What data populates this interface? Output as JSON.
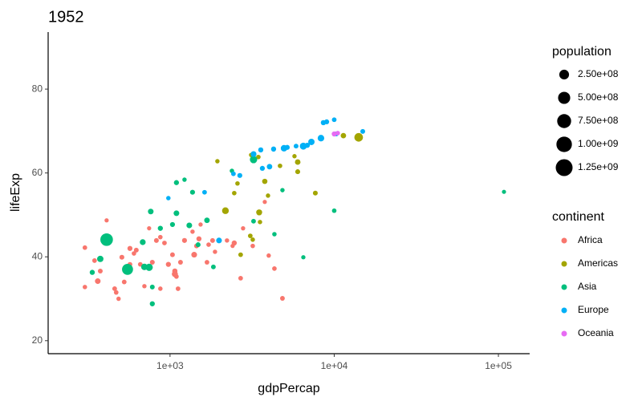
{
  "chart_data": {
    "type": "scatter",
    "title": "1952",
    "x_label": "gdpPercap",
    "y_label": "lifeExp",
    "xscale": "log",
    "xlim": [
      181,
      155000
    ],
    "ylim": [
      16.9,
      93.6
    ],
    "xticks": [
      {
        "value": 1000,
        "label": "1e+03"
      },
      {
        "value": 10000,
        "label": "1e+04"
      },
      {
        "value": 100000,
        "label": "1e+05"
      }
    ],
    "yticks": [
      20,
      40,
      60,
      80
    ],
    "color_legend_title": "continent",
    "size_legend": {
      "title": "population",
      "values": [
        {
          "value": 250000000,
          "label": "2.50e+08"
        },
        {
          "value": 500000000,
          "label": "5.00e+08"
        },
        {
          "value": 750000000,
          "label": "7.50e+08"
        },
        {
          "value": 1000000000,
          "label": "1.00e+09"
        },
        {
          "value": 1250000000,
          "label": "1.25e+09"
        }
      ]
    },
    "series": [
      {
        "name": "Africa",
        "color": "#F8766D",
        "x": [
          303,
          303,
          347,
          363,
          376,
          411,
          460,
          470,
          486,
          509,
          526,
          570,
          570,
          603,
          623,
          659,
          682,
          698,
          746,
          780,
          826,
          873,
          873,
          925,
          977,
          1035,
          1070,
          1070,
          1094,
          1119,
          1158,
          1225,
          1371,
          1403,
          1450,
          1500,
          1535,
          1679,
          1718,
          1816,
          1879,
          2223,
          2405,
          2461,
          2692,
          2786,
          3190,
          3776,
          3991,
          4323,
          4838
        ],
        "values": [
          42.2,
          32.8,
          39.1,
          34.2,
          36.6,
          48.7,
          32.4,
          31.5,
          30.0,
          39.9,
          34.0,
          42.0,
          38.2,
          40.8,
          41.6,
          38.2,
          43.5,
          33.0,
          46.8,
          38.7,
          43.9,
          44.7,
          32.4,
          43.3,
          38.2,
          40.5,
          36.6,
          35.9,
          35.3,
          32.4,
          38.7,
          43.9,
          46.0,
          40.5,
          42.6,
          44.3,
          47.7,
          38.7,
          42.9,
          43.9,
          41.2,
          43.9,
          42.6,
          43.3,
          34.9,
          46.8,
          42.6,
          53.1,
          40.3,
          37.2,
          30.1
        ],
        "sizes": [
          2400000,
          1400000,
          3000000,
          20000000,
          5000000,
          300000,
          4000000,
          2500000,
          1000000,
          6000000,
          3500000,
          8000000,
          4000000,
          2000000,
          5000000,
          3000000,
          1200000,
          900000,
          400000,
          6000000,
          5000000,
          2000000,
          1500000,
          3000000,
          8000000,
          4000000,
          12000000,
          33000000,
          2500000,
          3000000,
          5000000,
          7000000,
          1000000,
          22000000,
          4000000,
          9000000,
          600000,
          3000000,
          2000000,
          4500000,
          1000000,
          1300000,
          500000,
          10000000,
          3000000,
          700000,
          1800000,
          250000,
          1000000,
          2500000,
          4200000
        ]
      },
      {
        "name": "Americas",
        "color": "#A3A500",
        "x": [
          1943,
          2175,
          2461,
          2575,
          2692,
          3082,
          3118,
          3190,
          3451,
          3491,
          3531,
          3776,
          3952,
          4677,
          5728,
          5993,
          5993,
          7674,
          11375,
          14090
        ],
        "values": [
          62.8,
          51.0,
          55.2,
          57.5,
          40.5,
          45.0,
          64.3,
          44.1,
          63.8,
          50.6,
          48.3,
          58.0,
          54.6,
          61.7,
          64.0,
          62.6,
          60.3,
          55.2,
          68.9,
          68.5
        ],
        "sizes": [
          1000000,
          56600000,
          2000000,
          1500000,
          3200000,
          3000000,
          900000,
          1500000,
          2100000,
          30000000,
          1400000,
          12300000,
          1000000,
          2200000,
          800000,
          17900000,
          6000000,
          5400000,
          14800000,
          157600000
        ]
      },
      {
        "name": "Asia",
        "color": "#00BF7D",
        "x": [
          336,
          376,
          411,
          551,
          698,
          763,
          780,
          780,
          682,
          746,
          873,
          1035,
          1094,
          1094,
          1225,
          1310,
          1371,
          1483,
          1679,
          1837,
          2382,
          3226,
          3226,
          4323,
          4838,
          6486,
          10000,
          108140
        ],
        "values": [
          36.3,
          39.5,
          44.1,
          37.0,
          37.6,
          50.8,
          32.8,
          28.8,
          43.5,
          37.5,
          46.8,
          47.7,
          50.4,
          57.7,
          58.4,
          47.5,
          55.4,
          42.9,
          48.7,
          37.6,
          60.5,
          63.2,
          48.5,
          45.4,
          55.9,
          39.9,
          51.0,
          55.5
        ],
        "sizes": [
          9000000,
          41300000,
          556300000,
          372000000,
          46900000,
          20000000,
          4700000,
          8400000,
          26200000,
          82100000,
          9000000,
          7000000,
          20900000,
          8500000,
          1000000,
          22000000,
          6800000,
          5000000,
          17300000,
          4000000,
          1600000,
          86500000,
          3800000,
          1400000,
          1000000,
          500000,
          2000000,
          160000
        ]
      },
      {
        "name": "Europe",
        "color": "#00B0F6",
        "x": [
          977,
          1623,
          1988,
          2433,
          2661,
          3226,
          3650,
          3570,
          4037,
          4273,
          4946,
          5176,
          5857,
          6486,
          6860,
          7262,
          8304,
          8590,
          8995,
          10000,
          10280,
          14920
        ],
        "values": [
          54.0,
          55.4,
          43.9,
          59.8,
          59.4,
          64.5,
          61.1,
          65.5,
          61.5,
          65.7,
          65.9,
          66.1,
          66.4,
          66.4,
          66.6,
          67.4,
          68.3,
          72.0,
          72.2,
          72.7,
          69.3,
          69.9
        ],
        "sizes": [
          1300000,
          3000000,
          22200000,
          2800000,
          7300000,
          25700000,
          7600000,
          9100000,
          16600000,
          9500000,
          47700000,
          6900000,
          3900000,
          69100000,
          8700000,
          42500000,
          50400000,
          10400000,
          7100000,
          3300000,
          4800000,
          4800000
        ]
      },
      {
        "name": "Oceania",
        "color": "#E76BF3",
        "x": [
          10000,
          10510
        ],
        "values": [
          69.3,
          69.5
        ],
        "sizes": [
          8700000,
          1990000
        ]
      }
    ]
  }
}
